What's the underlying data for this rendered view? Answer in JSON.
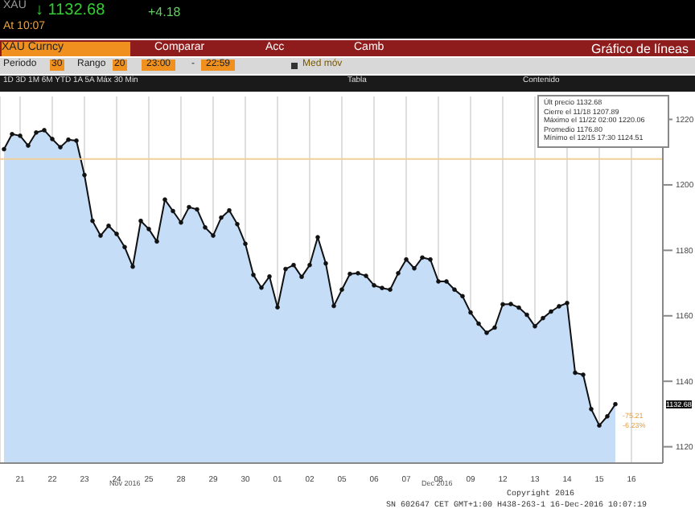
{
  "chart_data": {
    "type": "area",
    "title": "Gráfico de líneas",
    "categories": [
      null,
      null,
      "21",
      null,
      null,
      null,
      "22",
      null,
      null,
      null,
      "23",
      null,
      null,
      null,
      "24",
      null,
      null,
      null,
      "25",
      null,
      null,
      null,
      "28",
      null,
      null,
      null,
      "29",
      null,
      null,
      null,
      "30",
      null,
      null,
      null,
      "01",
      null,
      null,
      null,
      "02",
      null,
      null,
      null,
      "05",
      null,
      null,
      null,
      "06",
      null,
      null,
      null,
      "07",
      null,
      null,
      null,
      "08",
      null,
      null,
      null,
      "09",
      null,
      null,
      null,
      "12",
      null,
      null,
      null,
      "13",
      null,
      null,
      null,
      "14",
      null,
      null,
      null,
      "15",
      null,
      null,
      null,
      "16",
      null
    ],
    "series": [
      {
        "color": "#c6ddf8",
        "values": [
          1210.9,
          1215.5,
          1215,
          1212,
          1216,
          1216.7,
          1214,
          1211.5,
          1213.8,
          1213.5,
          1203,
          1189,
          1184.5,
          1187.5,
          1185,
          1181,
          1175,
          1189,
          1186.5,
          1182.7,
          1195.5,
          1192,
          1188.5,
          1193.2,
          1192.5,
          1187,
          1184.5,
          1190,
          1192.2,
          1188,
          1182,
          1172.5,
          1168.6,
          1172,
          1162.6,
          1174.3,
          1175.5,
          1171.9,
          1175.5,
          1184,
          1176,
          1163,
          1168,
          1172.8,
          1173,
          1172.2,
          1169.3,
          1168.5,
          1168,
          1173,
          1177.2,
          1174.5,
          1177.8,
          1177.2,
          1170.5,
          1170.5,
          1168,
          1166,
          1161,
          1157.6,
          1154.8,
          1156.4,
          1163.5,
          1163.6,
          1162.5,
          1160.3,
          1156.8,
          1159.3,
          1161.3,
          1162.9,
          1163.9,
          1142.6,
          1142,
          1131.5,
          1126.5,
          1129.3,
          1133,
          null,
          null,
          null
        ]
      }
    ],
    "ylim": [
      1115,
      1227
    ],
    "yticks": [
      1120,
      1140,
      1160,
      1180,
      1200,
      1220
    ],
    "grid": "x",
    "marker": "circle",
    "legend": false,
    "ref_lines": [
      {
        "axis": "y",
        "value": 1207.89,
        "color": "#f2cf9a"
      }
    ],
    "annotations": [
      "XAU",
      "↓ 1132.68",
      "+4.18",
      "At 10:07",
      "XAU Curncy",
      "Comparar",
      "Acc",
      "Camb",
      "Periodo",
      "30",
      "Rango",
      "20",
      "23:00",
      "-",
      "22:59",
      "Med móv",
      "1D 3D 1M 6M YTD 1A 5A Máx 30 Min",
      "Tabla",
      "Contenido",
      "Últ precio 1132.68",
      "Cierre el 11/18 1207.89",
      "Máximo el 11/22 02:00 1220.06",
      "Promedio 1176.80",
      "Mínimo el 12/15 17:30 1124.51",
      "Nov 2016",
      "Dec 2016",
      "1132.68",
      "-75.21",
      "-6.23%",
      "Copyright 2016",
      "SN 602647 CET GMT+1:00 H438-263-1 16-Dec-2016 10:07:19"
    ]
  }
}
